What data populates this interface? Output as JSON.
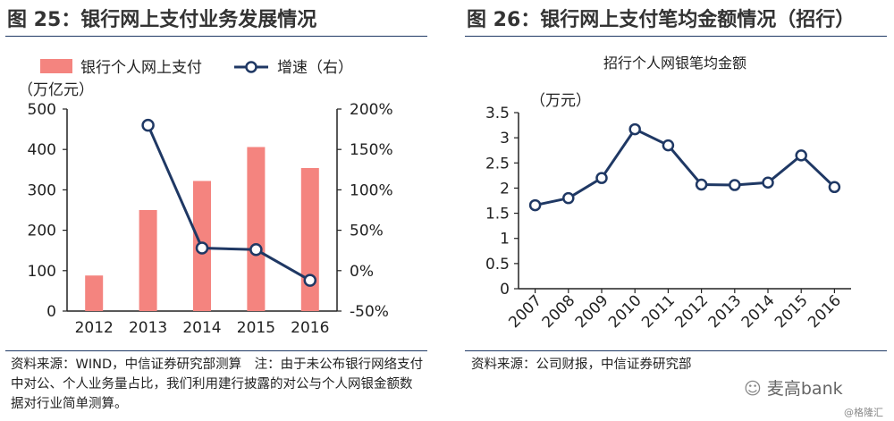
{
  "left": {
    "figure_title": "图 25：银行网上支付业务发展情况",
    "unit": "（万亿元）",
    "source": "资料来源：WIND，中信证券研究部测算　注：由于未公布银行网络支付中对公、个人业务量占比，我们利用建行披露的对公与个人网银金额数据对行业简单测算。"
  },
  "right": {
    "figure_title": "图 26：银行网上支付笔均金额情况（招行）",
    "unit": "（万元）",
    "source": "资料来源：公司财报，中信证券研究部"
  },
  "watermark": {
    "brand": "麦高bank",
    "small": "@格隆汇"
  },
  "colors": {
    "bar": "#f4847f",
    "line": "#1f3864",
    "rule": "#1f3864"
  },
  "chart_data": [
    {
      "type": "bar",
      "title": "",
      "categories": [
        "2012",
        "2013",
        "2014",
        "2015",
        "2016"
      ],
      "series": [
        {
          "name": "银行个人网上支付",
          "type": "bar",
          "axis": "left",
          "values": [
            88,
            250,
            322,
            406,
            354
          ]
        },
        {
          "name": "增速（右）",
          "type": "line",
          "axis": "right",
          "values": [
            null,
            1.8,
            0.28,
            0.26,
            -0.12
          ]
        }
      ],
      "ylim": [
        0,
        500
      ],
      "yticks": [
        0,
        100,
        200,
        300,
        400,
        500
      ],
      "y2lim": [
        -0.5,
        2.0
      ],
      "y2ticks": [
        "-50%",
        "0%",
        "50%",
        "100%",
        "150%",
        "200%"
      ],
      "legend": "top"
    },
    {
      "type": "line",
      "title": "招行个人网银笔均金额",
      "categories": [
        "2007",
        "2008",
        "2009",
        "2010",
        "2011",
        "2012",
        "2013",
        "2014",
        "2015",
        "2016"
      ],
      "series": [
        {
          "name": "",
          "values": [
            1.66,
            1.8,
            2.2,
            3.17,
            2.85,
            2.07,
            2.06,
            2.11,
            2.65,
            2.02
          ]
        }
      ],
      "ylim": [
        0,
        3.5
      ],
      "yticks": [
        "0",
        "0.5",
        "1",
        "1.5",
        "2",
        "2.5",
        "3",
        "3.5"
      ]
    }
  ]
}
